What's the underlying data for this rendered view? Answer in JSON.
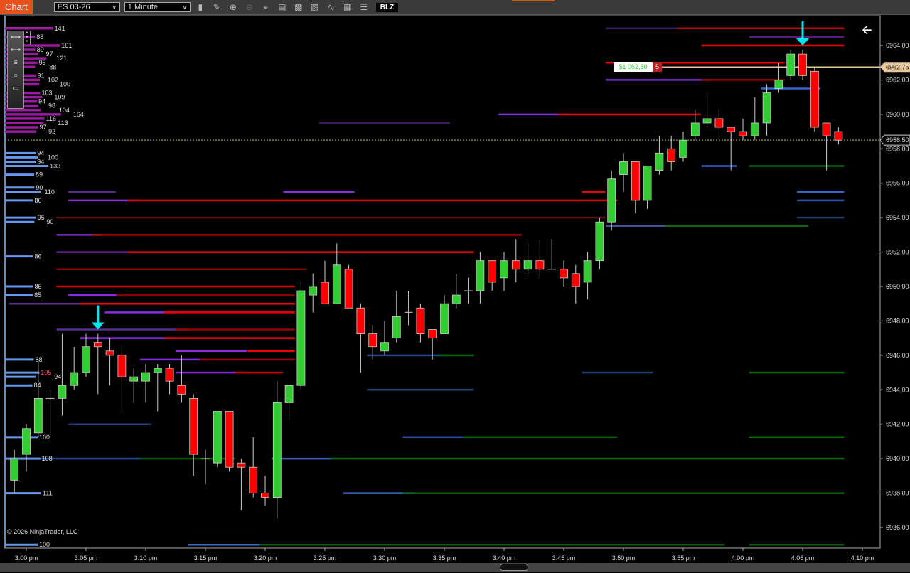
{
  "toolbar": {
    "tab": "Chart",
    "instrument": "ES 03-26",
    "interval": "1 Minute",
    "icons": [
      "bar-type-icon",
      "pencil-icon",
      "zoom-in-icon",
      "zoom-out-icon",
      "crosshair-icon",
      "data-box-icon",
      "properties-icon",
      "indicators-icon",
      "strategies-icon",
      "templates-icon",
      "list-icon"
    ],
    "blz": "BLZ"
  },
  "palette": {
    "icons": [
      "ruler-icon",
      "line-icon",
      "fib-lines-icon",
      "ellipse-icon",
      "rectangle-icon"
    ]
  },
  "copyright": "© 2026 NinjaTrader, LLC",
  "colors": {
    "up": "#33cc33",
    "down": "#ff0000",
    "ask": "#9932cc",
    "bid": "#6699ee",
    "marker": "#00e5ee",
    "position": "#e8c79a",
    "last": "#d4c000"
  },
  "position": {
    "pnl": "$1 062,50",
    "qty": "5",
    "price_label": "6962,75",
    "price": 6962.75
  },
  "last_price": {
    "label": "6958,50",
    "price": 6958.5
  },
  "chart_data": {
    "type": "candlestick",
    "instrument": "ES 03-26",
    "interval": "1 Minute",
    "ylim": [
      6935,
      6966
    ],
    "y_ticks": [
      "6936,00",
      "6938,00",
      "6940,00",
      "6942,00",
      "6944,00",
      "6946,00",
      "6948,00",
      "6950,00",
      "6952,00",
      "6954,00",
      "6956,00",
      "6958,00",
      "6960,00",
      "6962,00",
      "6964,00"
    ],
    "x_ticks": [
      "3:00 pm",
      "3:05 pm",
      "3:10 pm",
      "3:15 pm",
      "3:20 pm",
      "3:25 pm",
      "3:30 pm",
      "3:35 pm",
      "3:40 pm",
      "3:45 pm",
      "3:50 pm",
      "3:55 pm",
      "4:00 pm",
      "4:05 pm",
      "4:10 pm"
    ],
    "candles_fields": [
      "time",
      "open",
      "high",
      "low",
      "close"
    ],
    "candles": [
      [
        "14:59",
        6938.75,
        6940.5,
        6938,
        6940
      ],
      [
        "15:00",
        6940.25,
        6942,
        6939.25,
        6941.75
      ],
      [
        "15:01",
        6941.5,
        6945.75,
        6941.25,
        6943.5
      ],
      [
        "15:02",
        6943.5,
        6944,
        6941.25,
        6943.5
      ],
      [
        "15:03",
        6943.5,
        6947.25,
        6942.5,
        6944.25
      ],
      [
        "15:04",
        6944.25,
        6946.5,
        6944,
        6945
      ],
      [
        "15:05",
        6945,
        6947.25,
        6944.75,
        6946.5
      ],
      [
        "15:06",
        6946.75,
        6947.25,
        6943.75,
        6946.5
      ],
      [
        "15:07",
        6946.25,
        6947,
        6944.25,
        6946
      ],
      [
        "15:08",
        6946,
        6946.5,
        6942.75,
        6944.75
      ],
      [
        "15:09",
        6944.5,
        6945.25,
        6943.25,
        6944.75
      ],
      [
        "15:10",
        6944.5,
        6945.5,
        6943.25,
        6945
      ],
      [
        "15:11",
        6945,
        6945.5,
        6942.75,
        6945.25
      ],
      [
        "15:12",
        6945.25,
        6945.5,
        6943.75,
        6944.5
      ],
      [
        "15:13",
        6944.25,
        6946,
        6943.25,
        6943.75
      ],
      [
        "15:14",
        6943.5,
        6943.75,
        6939,
        6940.25
      ],
      [
        "15:15",
        6940,
        6940.5,
        6938.5,
        6940
      ],
      [
        "15:16",
        6939.75,
        6942.75,
        6939.5,
        6942.75
      ],
      [
        "15:17",
        6942.75,
        6942.75,
        6939.25,
        6939.5
      ],
      [
        "15:18",
        6939.75,
        6940,
        6937,
        6939.5
      ],
      [
        "15:19",
        6939.5,
        6941.25,
        6937.75,
        6938
      ],
      [
        "15:20",
        6938,
        6939,
        6937.25,
        6937.75
      ],
      [
        "15:21",
        6937.75,
        6944.5,
        6936.5,
        6943.25
      ],
      [
        "15:22",
        6943.25,
        6944.25,
        6942.25,
        6944.25
      ],
      [
        "15:23",
        6944.25,
        6950.25,
        6944,
        6949.75
      ],
      [
        "15:24",
        6949.5,
        6950.75,
        6948.5,
        6950
      ],
      [
        "15:25",
        6950.25,
        6951.5,
        6949,
        6949
      ],
      [
        "15:26",
        6949,
        6952.5,
        6949,
        6951.25
      ],
      [
        "15:27",
        6951,
        6951.25,
        6948.75,
        6948.75
      ],
      [
        "15:28",
        6948.75,
        6949,
        6945,
        6947.25
      ],
      [
        "15:29",
        6947.25,
        6947.75,
        6945.75,
        6946.5
      ],
      [
        "15:30",
        6946.25,
        6948,
        6946,
        6946.75
      ],
      [
        "15:31",
        6947,
        6949.75,
        6946.75,
        6948.25
      ],
      [
        "15:32",
        6948.5,
        6949.75,
        6947.75,
        6948.5
      ],
      [
        "15:33",
        6948.75,
        6949,
        6946.75,
        6947.25
      ],
      [
        "15:34",
        6947.5,
        6947.5,
        6945.75,
        6947
      ],
      [
        "15:35",
        6947.25,
        6949.5,
        6947.25,
        6949
      ],
      [
        "15:36",
        6949,
        6950.75,
        6948.75,
        6949.5
      ],
      [
        "15:37",
        6949.75,
        6950.5,
        6949,
        6949.75
      ],
      [
        "15:38",
        6949.75,
        6952,
        6949,
        6951.5
      ],
      [
        "15:39",
        6951.5,
        6951.5,
        6949.75,
        6950.25
      ],
      [
        "15:40",
        6950.5,
        6952,
        6949.75,
        6951.5
      ],
      [
        "15:41",
        6951.5,
        6952.75,
        6950.25,
        6951
      ],
      [
        "15:42",
        6951,
        6952.5,
        6950.75,
        6951.5
      ],
      [
        "15:43",
        6951.5,
        6952.75,
        6950.5,
        6951
      ],
      [
        "15:44",
        6951,
        6952.75,
        6951,
        6951
      ],
      [
        "15:45",
        6951,
        6951.5,
        6950,
        6950.5
      ],
      [
        "15:46",
        6950.75,
        6951.25,
        6949,
        6950
      ],
      [
        "15:47",
        6950.25,
        6952,
        6949.25,
        6951.5
      ],
      [
        "15:48",
        6951.5,
        6954,
        6951,
        6953.75
      ],
      [
        "15:49",
        6953.75,
        6956.75,
        6953.25,
        6956.25
      ],
      [
        "15:50",
        6956.5,
        6957.75,
        6955.5,
        6957.25
      ],
      [
        "15:51",
        6957.25,
        6957.25,
        6954.25,
        6955
      ],
      [
        "15:52",
        6955,
        6957,
        6954.5,
        6957
      ],
      [
        "15:53",
        6956.75,
        6958.75,
        6956.5,
        6957.75
      ],
      [
        "15:54",
        6958,
        6958.75,
        6956.75,
        6957.25
      ],
      [
        "15:55",
        6957.5,
        6959,
        6957.25,
        6958.5
      ],
      [
        "15:56",
        6958.75,
        6960.25,
        6958.5,
        6959.5
      ],
      [
        "15:57",
        6959.5,
        6961.25,
        6959.25,
        6959.75
      ],
      [
        "15:58",
        6959.75,
        6960.25,
        6958.5,
        6959.25
      ],
      [
        "15:59",
        6959.25,
        6959.25,
        6956.75,
        6959
      ],
      [
        "16:00",
        6959,
        6959.75,
        6958.5,
        6958.75
      ],
      [
        "16:01",
        6958.75,
        6961,
        6958.5,
        6959.5
      ],
      [
        "16:02",
        6959.5,
        6961.75,
        6958.75,
        6961.25
      ],
      [
        "16:03",
        6961.5,
        6963,
        6961.25,
        6962
      ],
      [
        "16:04",
        6962.25,
        6963.75,
        6962,
        6963.5
      ],
      [
        "16:05",
        6963.5,
        6963.75,
        6962,
        6962.25
      ],
      [
        "16:06",
        6962.5,
        6962.75,
        6959,
        6959.25
      ],
      [
        "16:07",
        6959.5,
        6959.5,
        6956.75,
        6958.75
      ],
      [
        "16:08",
        6959,
        6959.25,
        6958.25,
        6958.5
      ]
    ],
    "dom_asks": [
      [
        6965,
        141
      ],
      [
        6964.5,
        88
      ],
      [
        6964,
        161
      ],
      [
        6963.75,
        89
      ],
      [
        6963.5,
        97
      ],
      [
        6963.25,
        121
      ],
      [
        6963,
        95
      ],
      [
        6962.75,
        88
      ],
      [
        6962.25,
        91
      ],
      [
        6962,
        102
      ],
      [
        6961.75,
        100
      ],
      [
        6961.25,
        103
      ],
      [
        6961,
        109
      ],
      [
        6960.75,
        94
      ],
      [
        6960.5,
        98
      ],
      [
        6960.25,
        104
      ],
      [
        6960,
        164
      ],
      [
        6959.75,
        116
      ],
      [
        6959.5,
        113
      ],
      [
        6959.25,
        97
      ],
      [
        6959,
        92
      ]
    ],
    "dom_bids": [
      [
        6957.75,
        94
      ],
      [
        6957.5,
        100
      ],
      [
        6957.25,
        94
      ],
      [
        6957,
        133
      ],
      [
        6956.5,
        89
      ],
      [
        6955.75,
        90
      ],
      [
        6955.5,
        110
      ],
      [
        6955,
        86
      ],
      [
        6954,
        95
      ],
      [
        6953.75,
        90
      ],
      [
        6951.75,
        86
      ],
      [
        6950,
        86
      ],
      [
        6949.5,
        85
      ],
      [
        6945.75,
        88
      ],
      [
        6945,
        105
      ],
      [
        6944.75,
        94
      ],
      [
        6944.25,
        84
      ],
      [
        6941.25,
        100
      ],
      [
        6940,
        108
      ],
      [
        6938,
        111
      ],
      [
        6935,
        100
      ]
    ],
    "dom_highlight": [
      6945,
      105
    ],
    "liquidity_fields": [
      "price",
      "from",
      "to",
      "color"
    ],
    "liquidity": [
      [
        6965,
        "15:49",
        "15:55",
        "#3c1a66"
      ],
      [
        6965,
        "15:55",
        "16:08",
        "#cc0000"
      ],
      [
        6964.5,
        "16:01",
        "16:08",
        "#5a1a7a"
      ],
      [
        6964,
        "15:57",
        "16:08",
        "#ee0000"
      ],
      [
        6963,
        "15:49",
        "16:03",
        "#ee0000"
      ],
      [
        6962,
        "15:49",
        "15:57",
        "#7a2ad0"
      ],
      [
        6962,
        "15:57",
        "16:03",
        "#990000"
      ],
      [
        6960,
        "15:40",
        "15:45",
        "#8a2be2"
      ],
      [
        6960,
        "15:45",
        "15:56",
        "#ee0000"
      ],
      [
        6959.5,
        "15:25",
        "15:35",
        "#3c1a66"
      ],
      [
        6955.5,
        "15:04",
        "15:07",
        "#5a2a99"
      ],
      [
        6955.5,
        "15:22",
        "15:27",
        "#8a2be2"
      ],
      [
        6955.5,
        "15:47",
        "15:48",
        "#ee0000"
      ],
      [
        6955,
        "15:04",
        "15:09",
        "#8a2be2"
      ],
      [
        6955,
        "15:09",
        "15:49",
        "#ee0000"
      ],
      [
        6954,
        "15:03",
        "15:48",
        "#661111"
      ],
      [
        6953,
        "15:03",
        "15:06",
        "#7a2ad0"
      ],
      [
        6953,
        "15:06",
        "15:41",
        "#bb0000"
      ],
      [
        6952,
        "15:03",
        "15:09",
        "#6a1aa0"
      ],
      [
        6952,
        "15:09",
        "15:37",
        "#ee0000"
      ],
      [
        6951,
        "15:03",
        "15:23",
        "#880000"
      ],
      [
        6950,
        "15:03",
        "15:22",
        "#dd0000"
      ],
      [
        6949.5,
        "15:04",
        "15:08",
        "#8a2be2"
      ],
      [
        6949.5,
        "15:08",
        "15:22",
        "#880000"
      ],
      [
        6949,
        "14:59",
        "15:05",
        "#5a2a99"
      ],
      [
        6949,
        "15:05",
        "15:22",
        "#ee0000"
      ],
      [
        6948.5,
        "15:07",
        "15:12",
        "#8a2be2"
      ],
      [
        6948.5,
        "15:12",
        "15:22",
        "#ee0000"
      ],
      [
        6947.5,
        "15:03",
        "15:13",
        "#5a2a99"
      ],
      [
        6947.5,
        "15:13",
        "15:22",
        "#990000"
      ],
      [
        6947,
        "15:05",
        "15:12",
        "#8a2be2"
      ],
      [
        6947,
        "15:12",
        "15:22",
        "#ee0000"
      ],
      [
        6946.25,
        "15:13",
        "15:18",
        "#8a2be2"
      ],
      [
        6946.25,
        "15:19",
        "15:22",
        "#ee0000"
      ],
      [
        6945.75,
        "15:10",
        "15:15",
        "#7a2ad0"
      ],
      [
        6945.75,
        "15:15",
        "15:22",
        "#990000"
      ],
      [
        6945,
        "15:13",
        "15:18",
        "#8a2be2"
      ],
      [
        6945,
        "15:18",
        "15:21",
        "#dd0000"
      ],
      [
        6953.5,
        "15:49",
        "15:54",
        "#3355aa"
      ],
      [
        6953.5,
        "15:54",
        "16:05",
        "#0a6a0a"
      ],
      [
        6957,
        "15:57",
        "15:59",
        "#3366cc"
      ],
      [
        6957,
        "16:01",
        "16:08",
        "#0a6a0a"
      ],
      [
        6961.5,
        "16:02",
        "16:06",
        "#3366cc"
      ],
      [
        6955,
        "16:05",
        "16:08",
        "#3355aa"
      ],
      [
        6955.5,
        "16:05",
        "16:08",
        "#3366cc"
      ],
      [
        6954,
        "16:05",
        "16:08",
        "#223d7a"
      ],
      [
        6946,
        "15:29",
        "15:35",
        "#2a4a99"
      ],
      [
        6946,
        "15:35",
        "15:37",
        "#0a6a0a"
      ],
      [
        6945,
        "15:47",
        "15:52",
        "#223d7a"
      ],
      [
        6945,
        "16:01",
        "16:08",
        "#0a6a0a"
      ],
      [
        6944,
        "15:29",
        "15:37",
        "#223d7a"
      ],
      [
        6942,
        "15:04",
        "15:10",
        "#223d7a"
      ],
      [
        6941.25,
        "15:32",
        "15:37",
        "#2a4a99"
      ],
      [
        6941.25,
        "15:37",
        "15:49",
        "#0a5a0a"
      ],
      [
        6941.25,
        "16:01",
        "16:08",
        "#0a6a0a"
      ],
      [
        6940,
        "14:59",
        "15:10",
        "#2a4a99"
      ],
      [
        6940,
        "15:10",
        "15:17",
        "#0a5a0a"
      ],
      [
        6940,
        "15:21",
        "15:26",
        "#3355aa"
      ],
      [
        6940,
        "15:26",
        "16:08",
        "#0a6a0a"
      ],
      [
        6938,
        "15:27",
        "15:32",
        "#3366cc"
      ],
      [
        6938,
        "15:32",
        "16:08",
        "#0a6a0a"
      ],
      [
        6935,
        "15:14",
        "15:20",
        "#3366cc"
      ],
      [
        6935,
        "15:20",
        "15:58",
        "#0a5a0a"
      ],
      [
        6935,
        "16:01",
        "16:08",
        "#0a5a0a"
      ]
    ],
    "markers": [
      {
        "time": "15:06",
        "price": 6947.5,
        "direction": "down"
      },
      {
        "time": "16:05",
        "price": 6964,
        "direction": "down"
      }
    ]
  }
}
